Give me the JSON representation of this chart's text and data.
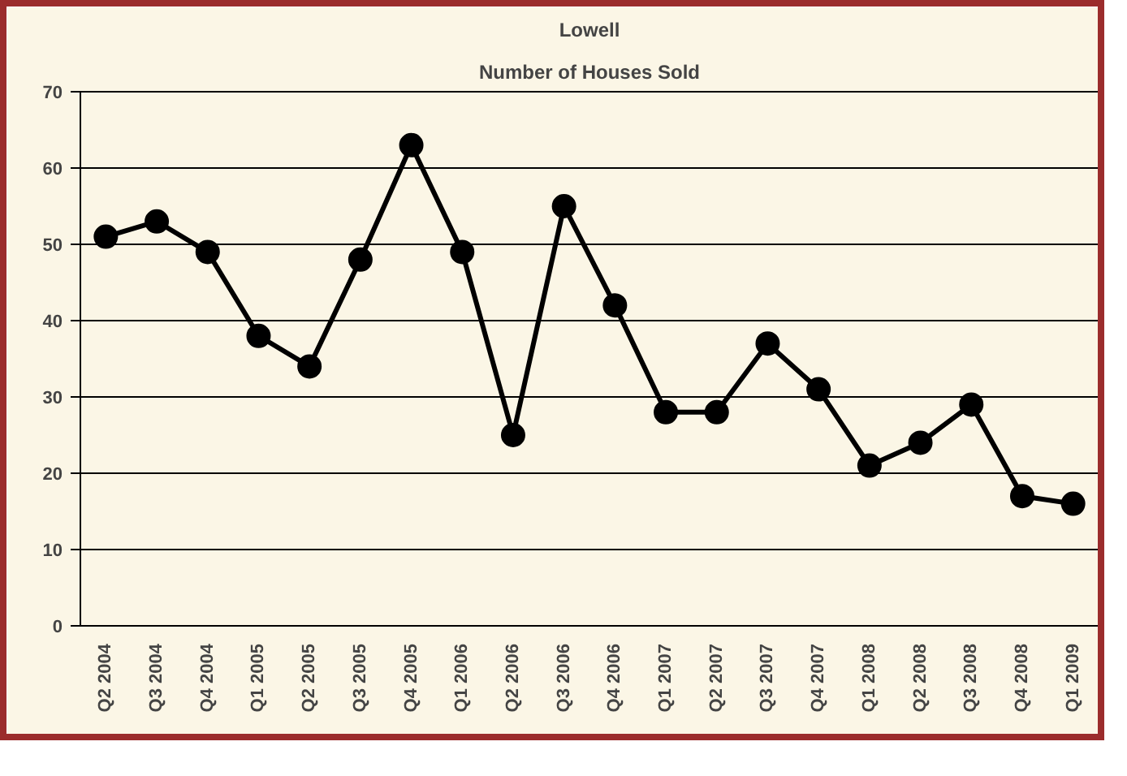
{
  "chart_data": {
    "type": "line",
    "title": "Lowell",
    "subtitle": "Number of Houses Sold",
    "categories": [
      "Q2 2004",
      "Q3 2004",
      "Q4 2004",
      "Q1 2005",
      "Q2 2005",
      "Q3 2005",
      "Q4 2005",
      "Q1 2006",
      "Q2 2006",
      "Q3 2006",
      "Q4 2006",
      "Q1 2007",
      "Q2 2007",
      "Q3 2007",
      "Q4 2007",
      "Q1 2008",
      "Q2 2008",
      "Q3 2008",
      "Q4 2008",
      "Q1 2009"
    ],
    "series": [
      {
        "color": "#000000",
        "values": [
          51,
          53,
          49,
          38,
          34,
          48,
          63,
          49,
          25,
          55,
          42,
          28,
          28,
          37,
          31,
          21,
          24,
          29,
          17,
          16
        ]
      }
    ],
    "ylim": [
      0,
      70
    ],
    "yticks": [
      0,
      10,
      20,
      30,
      40,
      50,
      60,
      70
    ],
    "grid": "y",
    "marker": "circle",
    "line_style": "solid"
  }
}
